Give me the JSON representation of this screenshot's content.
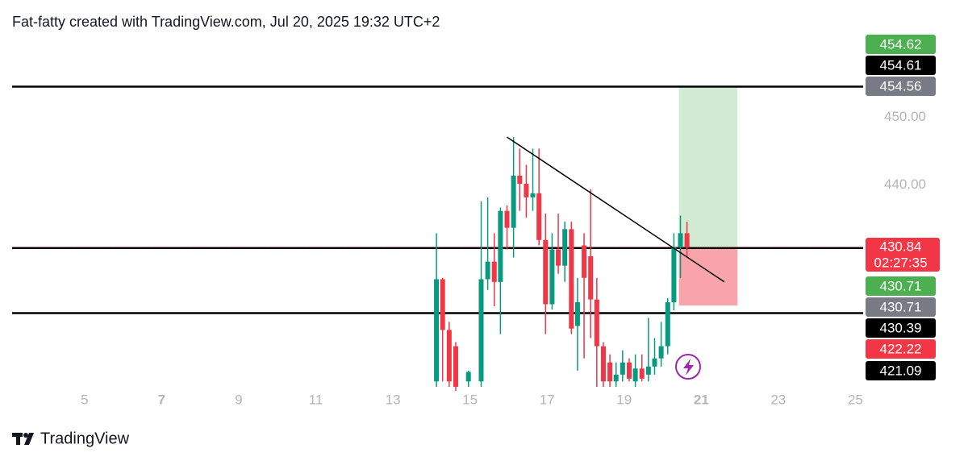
{
  "header": {
    "title": "Fat-fatty created with TradingView.com, Jul 20, 2025 19:32 UTC+2"
  },
  "chart_data": {
    "type": "candlestick",
    "x": [
      14.13,
      14.29,
      14.46,
      14.63,
      14.96,
      15.29,
      15.46,
      15.63,
      15.79,
      15.96,
      16.13,
      16.29,
      16.46,
      16.63,
      16.79,
      16.96,
      17.13,
      17.29,
      17.46,
      17.63,
      17.79,
      17.96,
      18.13,
      18.29,
      18.46,
      18.63,
      18.79,
      18.96,
      19.13,
      19.29,
      19.46,
      19.63,
      19.79,
      19.96,
      20.13,
      20.29,
      20.46,
      20.63
    ],
    "open": [
      411.0,
      426.1,
      418.6,
      416.2,
      411.0,
      411.0,
      426.1,
      428.7,
      425.7,
      436.2,
      433.7,
      441.4,
      440.2,
      438.2,
      438.8,
      431.9,
      422.4,
      430.5,
      428.1,
      433.5,
      419.2,
      431.1,
      429.5,
      423.1,
      416.2,
      413.8,
      411.0,
      412.0,
      413.8,
      411.0,
      412.9,
      412.0,
      413.2,
      414.4,
      416.2,
      422.7,
      430.8,
      432.9
    ],
    "high": [
      432.9,
      426.3,
      419.8,
      416.8,
      412.6,
      437.6,
      438.2,
      432.9,
      436.7,
      437.0,
      447.1,
      445.4,
      443.0,
      445.4,
      445.4,
      435.8,
      432.9,
      435.8,
      434.6,
      434.6,
      426.3,
      432.9,
      439.4,
      426.3,
      416.8,
      415.0,
      413.8,
      415.6,
      414.4,
      415.0,
      415.0,
      420.4,
      417.4,
      419.8,
      423.3,
      432.9,
      435.5,
      434.6
    ],
    "low": [
      410.2,
      411.0,
      410.2,
      409.6,
      410.2,
      410.2,
      424.5,
      422.1,
      418.0,
      430.5,
      429.3,
      436.2,
      435.2,
      436.2,
      431.1,
      418.0,
      421.6,
      426.9,
      425.7,
      418.0,
      412.6,
      414.4,
      417.4,
      410.2,
      410.2,
      410.2,
      410.2,
      411.0,
      411.0,
      410.2,
      411.0,
      411.0,
      412.0,
      413.2,
      415.0,
      421.5,
      426.3,
      429.3
    ],
    "close": [
      426.1,
      418.6,
      411.0,
      410.2,
      412.4,
      426.1,
      428.7,
      425.7,
      436.2,
      433.7,
      441.4,
      440.2,
      438.2,
      438.8,
      431.9,
      422.4,
      430.5,
      428.1,
      433.5,
      418.8,
      422.7,
      426.3,
      423.1,
      416.2,
      411.0,
      411.0,
      412.0,
      413.8,
      411.4,
      412.9,
      411.4,
      413.2,
      414.4,
      416.2,
      422.7,
      430.8,
      432.9,
      430.8
    ],
    "up_color": "#089981",
    "down_color": "#f23645",
    "xlim": [
      3.12,
      25.2
    ],
    "ylim": [
      409.6,
      462.0
    ],
    "xticks": [
      5,
      7,
      9,
      11,
      13,
      15,
      17,
      19,
      21,
      23,
      25
    ],
    "bold_xticks": [
      7,
      21
    ],
    "yticks": [
      {
        "value": 450,
        "label": "450.00"
      },
      {
        "value": 440,
        "label": "440.00"
      }
    ],
    "horizontal_lines": [
      454.56,
      430.71,
      421.09
    ],
    "current_price": {
      "value": 430.84,
      "countdown": "02:27:35",
      "color": "#f23645"
    },
    "trend_line": {
      "x": [
        15.96,
        21.6
      ],
      "y": [
        447.1,
        425.7
      ]
    },
    "position": {
      "x": [
        20.42,
        21.94
      ],
      "entry": 430.71,
      "target": 454.62,
      "stop": 422.22
    },
    "price_labels": [
      {
        "value": 454.62,
        "color": "#4caf50"
      },
      {
        "value": 454.61,
        "color": "#000000"
      },
      {
        "value": 454.56,
        "color": "#787b86"
      },
      {
        "value": 430.71,
        "color": "#4caf50"
      },
      {
        "value": 430.71,
        "color": "#787b86"
      },
      {
        "value": 430.39,
        "color": "#000000"
      },
      {
        "value": 422.22,
        "color": "#f23645"
      },
      {
        "value": 421.09,
        "color": "#000000"
      }
    ]
  },
  "footer": {
    "brand": "TradingView"
  }
}
